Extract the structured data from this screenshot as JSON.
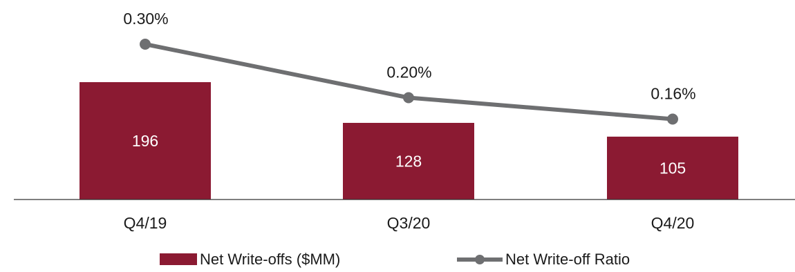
{
  "chart_data": {
    "type": "bar",
    "categories": [
      "Q4/19",
      "Q3/20",
      "Q4/20"
    ],
    "series": [
      {
        "name": "Net Write-offs ($MM)",
        "kind": "bar",
        "values": [
          196,
          128,
          105
        ],
        "labels": [
          "196",
          "128",
          "105"
        ],
        "color": "#8B1A32"
      },
      {
        "name": "Net Write-off Ratio",
        "kind": "line",
        "values": [
          0.3,
          0.2,
          0.16
        ],
        "labels": [
          "0.30%",
          "0.20%",
          "0.16%"
        ],
        "color": "#6E6F71"
      }
    ],
    "legend_position": "bottom",
    "grid": false
  }
}
